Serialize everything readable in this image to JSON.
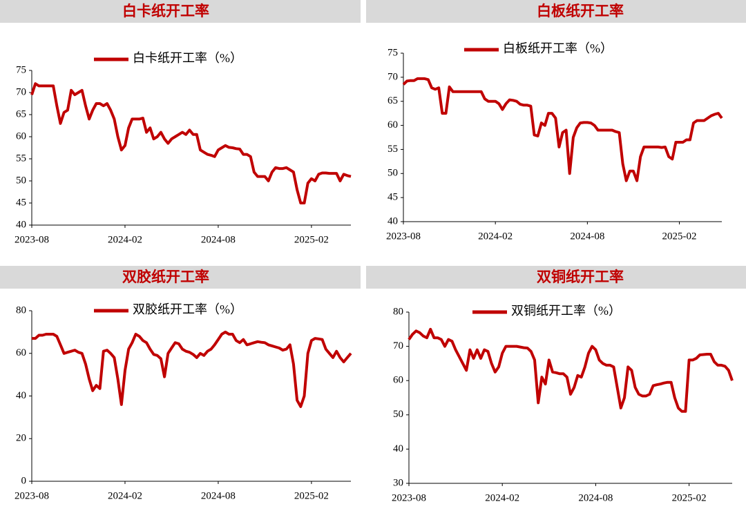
{
  "chart_data": [
    {
      "type": "line",
      "title": "白卡纸开工率",
      "categories": [
        "2023-08",
        null,
        null,
        null,
        null,
        null,
        null,
        null,
        null,
        null,
        null,
        null,
        null,
        null,
        null,
        null,
        null,
        null,
        null,
        null,
        null,
        null,
        null,
        null,
        null,
        null,
        "2024-02",
        null,
        null,
        null,
        null,
        null,
        null,
        null,
        null,
        null,
        null,
        null,
        null,
        null,
        null,
        null,
        null,
        null,
        null,
        null,
        null,
        null,
        null,
        null,
        null,
        null,
        "2024-08",
        null,
        null,
        null,
        null,
        null,
        null,
        null,
        null,
        null,
        null,
        null,
        null,
        null,
        null,
        null,
        null,
        null,
        null,
        null,
        null,
        null,
        null,
        null,
        null,
        null,
        "2025-02",
        null,
        null,
        null,
        null,
        null,
        null,
        null,
        null,
        null,
        null,
        null
      ],
      "series": [
        {
          "name": "白卡纸开工率（%）",
          "color": "#c00000",
          "values": [
            69.5,
            72,
            71.5,
            71.5,
            71.5,
            71.5,
            71.5,
            67,
            63,
            65.5,
            66,
            70.5,
            69.5,
            70,
            70.5,
            67,
            64,
            66,
            67.5,
            67.5,
            67,
            67.5,
            66,
            64,
            60,
            57,
            58,
            62,
            64,
            64,
            64,
            64.2,
            61,
            62,
            59.5,
            60,
            61,
            59.5,
            58.5,
            59.5,
            60,
            60.5,
            61,
            60.5,
            61.5,
            60.5,
            60.5,
            57,
            56.5,
            56,
            55.8,
            55.5,
            57,
            57.5,
            58,
            57.6,
            57.5,
            57.3,
            57.2,
            56,
            56,
            55.5,
            52,
            51,
            51,
            51,
            50,
            52,
            53,
            52.8,
            52.8,
            53,
            52.5,
            52,
            48,
            45,
            45,
            49.5,
            50.5,
            50,
            51.5,
            51.8,
            51.8,
            51.7,
            51.7,
            51.7,
            50,
            51.5,
            51.2,
            51
          ]
        }
      ],
      "ylim": [
        40,
        75
      ],
      "yticks": [
        40,
        45,
        50,
        55,
        60,
        65,
        70,
        75
      ]
    },
    {
      "type": "line",
      "title": "白板纸开工率",
      "categories": [
        "2023-08",
        null,
        null,
        null,
        null,
        null,
        null,
        null,
        null,
        null,
        null,
        null,
        null,
        null,
        null,
        null,
        null,
        null,
        null,
        null,
        null,
        null,
        null,
        null,
        null,
        null,
        "2024-02",
        null,
        null,
        null,
        null,
        null,
        null,
        null,
        null,
        null,
        null,
        null,
        null,
        null,
        null,
        null,
        null,
        null,
        null,
        null,
        null,
        null,
        null,
        null,
        null,
        null,
        "2024-08",
        null,
        null,
        null,
        null,
        null,
        null,
        null,
        null,
        null,
        null,
        null,
        null,
        null,
        null,
        null,
        null,
        null,
        null,
        null,
        null,
        null,
        null,
        null,
        null,
        null,
        "2025-02",
        null,
        null,
        null,
        null,
        null,
        null,
        null,
        null,
        null,
        null,
        null,
        null
      ],
      "series": [
        {
          "name": "白板纸开工率（%）",
          "color": "#c00000",
          "values": [
            68.5,
            69.2,
            69.3,
            69.3,
            69.7,
            69.7,
            69.7,
            69.5,
            67.8,
            67.5,
            67.8,
            62.5,
            62.5,
            68,
            67,
            67,
            67,
            67,
            67,
            67,
            67,
            67,
            67,
            65.5,
            65,
            65,
            65,
            64.5,
            63.3,
            64.5,
            65.3,
            65.2,
            65,
            64.4,
            64.2,
            64.2,
            64,
            58,
            57.8,
            60.5,
            60,
            62.5,
            62.5,
            61.5,
            55.5,
            58.5,
            59,
            50,
            57.5,
            59.5,
            60.5,
            60.6,
            60.6,
            60.5,
            60,
            59,
            59,
            59,
            59,
            59,
            58.7,
            58.5,
            52,
            48.5,
            50.5,
            50.5,
            48.5,
            53.5,
            55.5,
            55.5,
            55.5,
            55.5,
            55.5,
            55.4,
            55.5,
            53.5,
            53,
            56.5,
            56.5,
            56.5,
            57,
            57,
            60.5,
            61,
            61,
            61,
            61.5,
            62,
            62.3,
            62.5,
            61.5
          ]
        }
      ],
      "ylim": [
        40,
        75
      ],
      "yticks": [
        40,
        45,
        50,
        55,
        60,
        65,
        70,
        75
      ]
    },
    {
      "type": "line",
      "title": "双胶纸开工率",
      "categories": [
        "2023-08",
        null,
        null,
        null,
        null,
        null,
        null,
        null,
        null,
        null,
        null,
        null,
        null,
        null,
        null,
        null,
        null,
        null,
        null,
        null,
        null,
        null,
        null,
        null,
        null,
        null,
        "2024-02",
        null,
        null,
        null,
        null,
        null,
        null,
        null,
        null,
        null,
        null,
        null,
        null,
        null,
        null,
        null,
        null,
        null,
        null,
        null,
        null,
        null,
        null,
        null,
        null,
        null,
        "2024-08",
        null,
        null,
        null,
        null,
        null,
        null,
        null,
        null,
        null,
        null,
        null,
        null,
        null,
        null,
        null,
        null,
        null,
        null,
        null,
        null,
        null,
        null,
        null,
        null,
        null,
        "2025-02",
        null,
        null,
        null,
        null,
        null,
        null,
        null,
        null,
        null,
        null,
        null
      ],
      "series": [
        {
          "name": "双胶纸开工率（%）",
          "color": "#c00000",
          "values": [
            67,
            67,
            68.5,
            68.5,
            69,
            69,
            69,
            68,
            64,
            60,
            60.5,
            61,
            61.5,
            60.5,
            60,
            55,
            48,
            42.5,
            45,
            43.5,
            61,
            61.5,
            60,
            58,
            48,
            36,
            52,
            62,
            65,
            69,
            68,
            66,
            65,
            62,
            59.5,
            59,
            57.5,
            49,
            60,
            62.5,
            65,
            64.5,
            62,
            61,
            60.5,
            59.5,
            58,
            60,
            59,
            61,
            62,
            64,
            66.5,
            69,
            70,
            69,
            69,
            66,
            65,
            66.5,
            64,
            64.5,
            65,
            65.5,
            65.2,
            65,
            64,
            63.5,
            63,
            62.5,
            61.5,
            62,
            64,
            55,
            38,
            35,
            40,
            60,
            66,
            67,
            66.8,
            66.5,
            62,
            60,
            58,
            61,
            58,
            56,
            58,
            60
          ]
        }
      ],
      "ylim": [
        0,
        80
      ],
      "yticks": [
        0,
        20,
        40,
        60,
        80
      ]
    },
    {
      "type": "line",
      "title": "双铜纸开工率",
      "categories": [
        "2023-08",
        null,
        null,
        null,
        null,
        null,
        null,
        null,
        null,
        null,
        null,
        null,
        null,
        null,
        null,
        null,
        null,
        null,
        null,
        null,
        null,
        null,
        null,
        null,
        null,
        null,
        "2024-02",
        null,
        null,
        null,
        null,
        null,
        null,
        null,
        null,
        null,
        null,
        null,
        null,
        null,
        null,
        null,
        null,
        null,
        null,
        null,
        null,
        null,
        null,
        null,
        null,
        null,
        "2024-08",
        null,
        null,
        null,
        null,
        null,
        null,
        null,
        null,
        null,
        null,
        null,
        null,
        null,
        null,
        null,
        null,
        null,
        null,
        null,
        null,
        null,
        null,
        null,
        null,
        null,
        "2025-02",
        null,
        null,
        null,
        null,
        null,
        null,
        null,
        null,
        null,
        null,
        null,
        null
      ],
      "series": [
        {
          "name": "双铜纸开工率（%）",
          "color": "#c00000",
          "values": [
            72,
            73.5,
            74.5,
            74,
            73,
            72.5,
            75,
            72.5,
            72.5,
            72,
            70,
            72,
            71.5,
            69,
            67,
            65,
            63,
            69,
            66.5,
            69,
            66.5,
            69,
            68.5,
            65,
            62.5,
            64,
            68,
            70,
            70,
            70,
            70,
            69.8,
            69.6,
            69.5,
            68.5,
            66,
            53.5,
            61,
            59,
            66,
            62.5,
            62.3,
            62,
            62,
            61,
            56,
            58,
            61.5,
            61,
            64,
            68,
            70,
            69,
            66,
            65,
            64.5,
            64.5,
            64,
            58,
            52,
            55,
            64,
            63,
            58,
            56,
            55.5,
            55.5,
            56,
            58.5,
            58.8,
            59,
            59.3,
            59.5,
            59.5,
            55,
            52,
            51,
            51,
            66,
            66,
            66.5,
            67.5,
            67.6,
            67.7,
            67.7,
            65.5,
            64.5,
            64.5,
            64.2,
            63,
            60
          ]
        }
      ],
      "ylim": [
        30,
        80
      ],
      "yticks": [
        30,
        40,
        50,
        60,
        70,
        80
      ]
    }
  ]
}
